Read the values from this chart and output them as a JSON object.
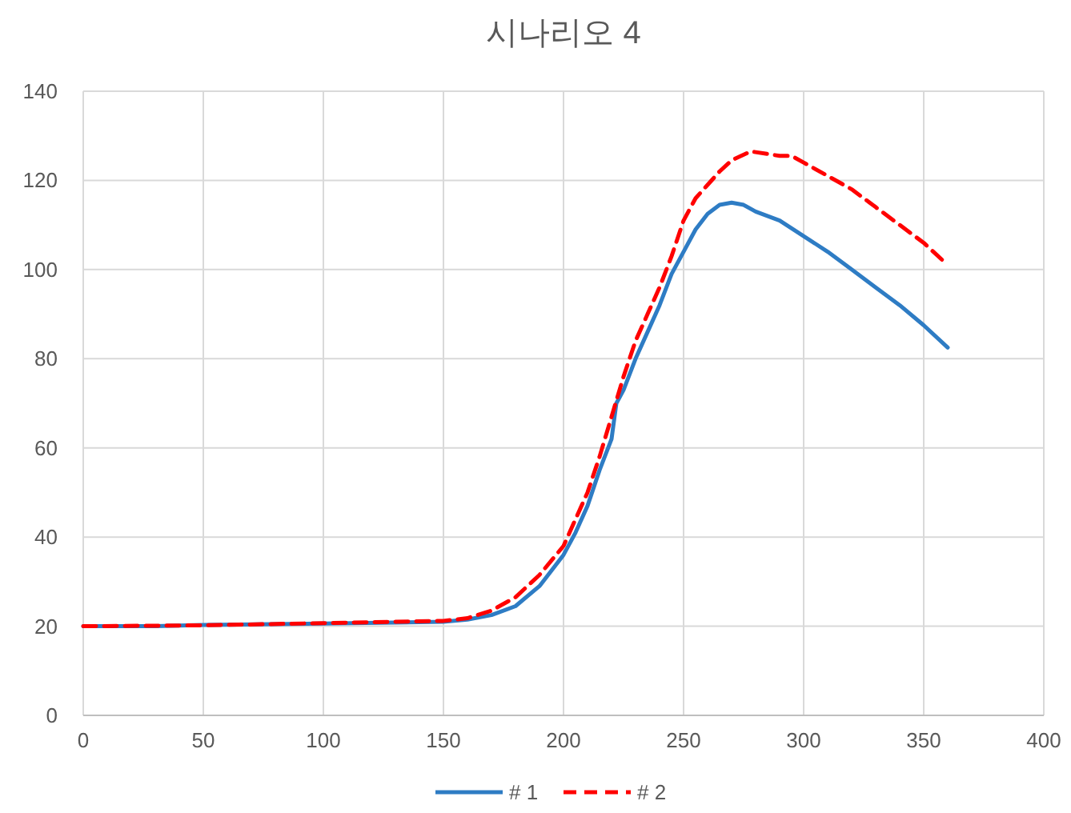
{
  "chart_data": {
    "type": "line",
    "title": "시나리오 4",
    "xlim": [
      0,
      400
    ],
    "ylim": [
      0,
      140
    ],
    "xticks": [
      0,
      50,
      100,
      150,
      200,
      250,
      300,
      350,
      400
    ],
    "yticks": [
      0,
      20,
      40,
      60,
      80,
      100,
      120,
      140
    ],
    "grid": true,
    "legend": "bottom",
    "marker": "none",
    "series": [
      {
        "name": "# 1",
        "color": "#2e7cc4",
        "line_style": "solid",
        "x": [
          0,
          30,
          50,
          100,
          150,
          160,
          170,
          180,
          190,
          200,
          205,
          210,
          215,
          220,
          222,
          225,
          230,
          235,
          240,
          245,
          250,
          255,
          260,
          265,
          270,
          275,
          280,
          290,
          300,
          310,
          320,
          330,
          340,
          350,
          360
        ],
        "values": [
          20,
          20,
          20.3,
          20.6,
          21,
          21.5,
          22.5,
          24.5,
          29,
          36,
          41,
          47,
          55,
          62,
          70,
          73,
          80,
          86,
          92,
          99,
          104,
          109,
          112.5,
          114.5,
          115,
          114.5,
          113,
          111,
          107.5,
          104,
          100,
          96,
          92,
          87.5,
          82.5
        ]
      },
      {
        "name": "# 2",
        "color": "#ff0000",
        "line_style": "dashed",
        "x": [
          0,
          50,
          100,
          150,
          160,
          170,
          180,
          190,
          200,
          210,
          215,
          220,
          225,
          230,
          235,
          240,
          245,
          250,
          255,
          260,
          265,
          270,
          278,
          290,
          295,
          300,
          310,
          320,
          330,
          340,
          350,
          358
        ],
        "values": [
          20,
          20.2,
          20.7,
          21.2,
          21.8,
          23.5,
          26.5,
          31.5,
          38,
          50,
          58,
          67,
          76,
          84,
          90,
          96,
          103,
          111,
          116,
          119,
          122,
          124.5,
          126.5,
          125.5,
          125.5,
          124,
          121,
          118,
          114,
          110,
          106,
          102
        ]
      }
    ]
  }
}
